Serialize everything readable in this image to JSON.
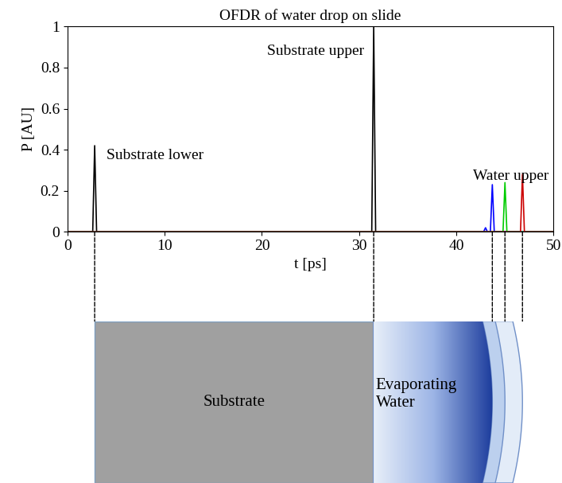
{
  "chart_data": {
    "type": "line",
    "title": "OFDR of water drop on slide",
    "x_label": "t [ps]",
    "y_label": "P [AU]",
    "xlim": [
      0,
      50
    ],
    "xticks": [
      0,
      10,
      20,
      30,
      40,
      50
    ],
    "ylim": [
      0,
      1
    ],
    "yticks": [
      0,
      0.2,
      0.4,
      0.6,
      0.8,
      1
    ],
    "annotations": [
      "Substrate lower",
      "Substrate upper",
      "Water upper"
    ],
    "series": [
      {
        "color": "#000000",
        "x": [
          0,
          2.6,
          2.8,
          3.0,
          31.3,
          31.5,
          31.7,
          50
        ],
        "values": [
          0,
          0,
          0.42,
          0,
          0,
          1.0,
          0,
          0
        ]
      },
      {
        "color": "#0000ff",
        "x": [
          0,
          42.8,
          43.0,
          43.2,
          43.5,
          43.7,
          43.9,
          50
        ],
        "values": [
          0,
          0,
          0.02,
          0,
          0,
          0.23,
          0,
          0
        ]
      },
      {
        "color": "#00cc00",
        "x": [
          0,
          44.8,
          45.0,
          45.2,
          50
        ],
        "values": [
          0,
          0,
          0.24,
          0,
          0
        ]
      },
      {
        "color": "#cc0000",
        "x": [
          0,
          46.6,
          46.8,
          47.0,
          50
        ],
        "values": [
          0,
          0,
          0.28,
          0,
          0
        ]
      }
    ]
  },
  "diagram": {
    "labels": [
      "Substrate",
      "Evaporating\nWater"
    ]
  }
}
